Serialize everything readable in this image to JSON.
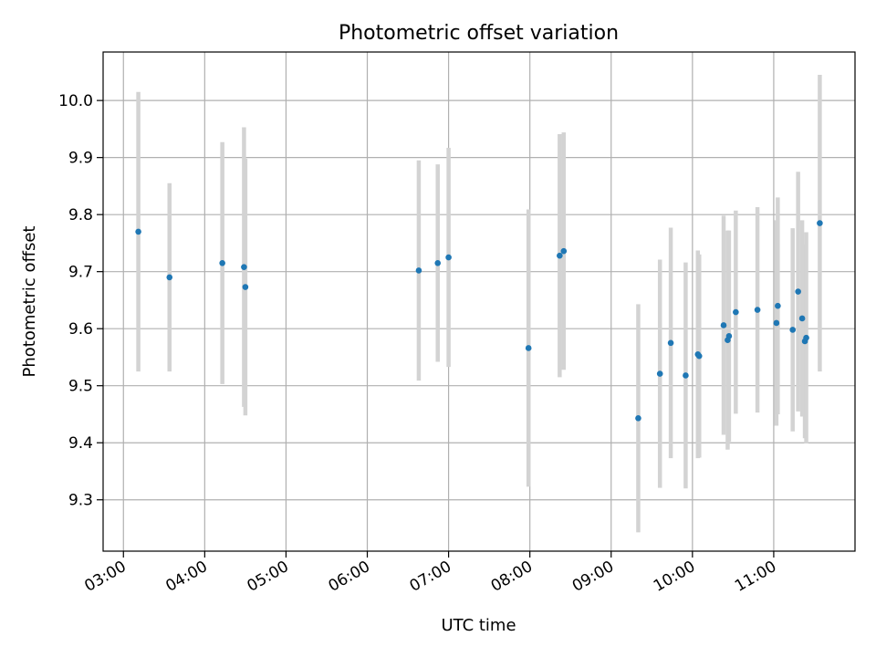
{
  "chart_data": {
    "type": "scatter",
    "title": "Photometric offset variation",
    "xlabel": "UTC time",
    "ylabel": "Photometric offset",
    "x_is_time": true,
    "xlim": [
      "02:45",
      "12:00"
    ],
    "ylim": [
      9.21,
      10.085
    ],
    "xticks": [
      "03:00",
      "04:00",
      "05:00",
      "06:00",
      "07:00",
      "08:00",
      "09:00",
      "10:00",
      "11:00"
    ],
    "yticks": [
      9.3,
      9.4,
      9.5,
      9.6,
      9.7,
      9.8,
      9.9,
      10.0
    ],
    "ytick_labels": [
      "9.3",
      "9.4",
      "9.5",
      "9.6",
      "9.7",
      "9.8",
      "9.9",
      "10.0"
    ],
    "grid": true,
    "legend": "none",
    "colors": {
      "points": "#1f77b4",
      "errorbars": "#d3d3d3",
      "grid": "#b0b0b0",
      "axes": "#000000"
    },
    "series": [
      {
        "points": [
          {
            "x": "03:11",
            "y": 9.77,
            "err": 0.245
          },
          {
            "x": "03:34",
            "y": 9.69,
            "err": 0.165
          },
          {
            "x": "04:13",
            "y": 9.715,
            "err": 0.212
          },
          {
            "x": "04:29",
            "y": 9.708,
            "err": 0.245
          },
          {
            "x": "04:30",
            "y": 9.673,
            "err": 0.225
          },
          {
            "x": "06:38",
            "y": 9.702,
            "err": 0.193
          },
          {
            "x": "06:52",
            "y": 9.715,
            "err": 0.173
          },
          {
            "x": "07:00",
            "y": 9.725,
            "err": 0.192
          },
          {
            "x": "07:59",
            "y": 9.566,
            "err": 0.243
          },
          {
            "x": "08:22",
            "y": 9.728,
            "err": 0.213
          },
          {
            "x": "08:25",
            "y": 9.736,
            "err": 0.208
          },
          {
            "x": "09:20",
            "y": 9.443,
            "err": 0.2
          },
          {
            "x": "09:36",
            "y": 9.521,
            "err": 0.2
          },
          {
            "x": "09:44",
            "y": 9.575,
            "err": 0.202
          },
          {
            "x": "09:55",
            "y": 9.518,
            "err": 0.198
          },
          {
            "x": "10:04",
            "y": 9.555,
            "err": 0.182
          },
          {
            "x": "10:05",
            "y": 9.552,
            "err": 0.178
          },
          {
            "x": "10:23",
            "y": 9.606,
            "err": 0.192
          },
          {
            "x": "10:26",
            "y": 9.58,
            "err": 0.192
          },
          {
            "x": "10:27",
            "y": 9.587,
            "err": 0.185
          },
          {
            "x": "10:32",
            "y": 9.629,
            "err": 0.178
          },
          {
            "x": "10:48",
            "y": 9.633,
            "err": 0.18
          },
          {
            "x": "11:02",
            "y": 9.61,
            "err": 0.18
          },
          {
            "x": "11:03",
            "y": 9.64,
            "err": 0.19
          },
          {
            "x": "11:14",
            "y": 9.598,
            "err": 0.178
          },
          {
            "x": "11:18",
            "y": 9.665,
            "err": 0.21
          },
          {
            "x": "11:21",
            "y": 9.618,
            "err": 0.172
          },
          {
            "x": "11:23",
            "y": 9.578,
            "err": 0.17
          },
          {
            "x": "11:24",
            "y": 9.584,
            "err": 0.185
          },
          {
            "x": "11:34",
            "y": 9.785,
            "err": 0.26
          }
        ]
      }
    ]
  }
}
